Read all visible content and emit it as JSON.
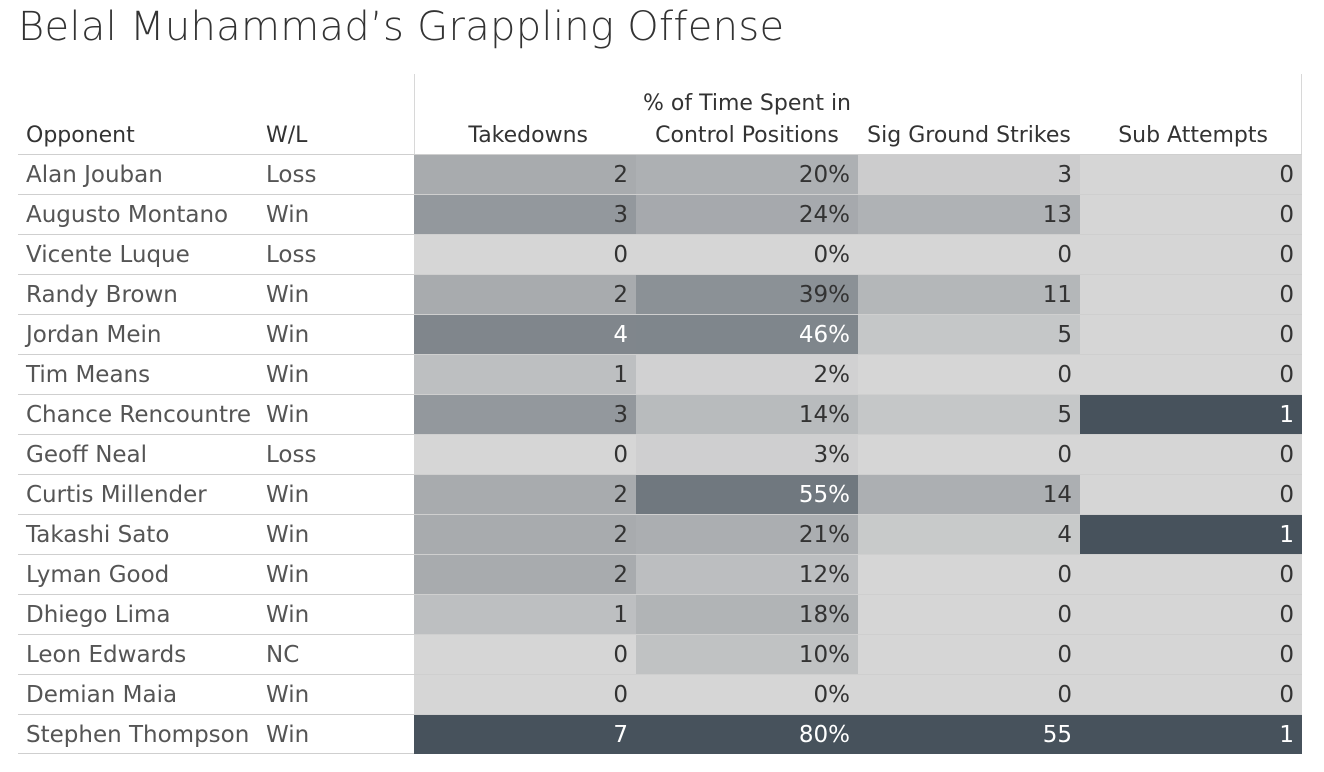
{
  "title": "Belal Muhammad’s Grappling Offense",
  "columns": {
    "opponent": "Opponent",
    "wl": "W/L",
    "takedowns": "Takedowns",
    "control_line1": "% of Time Spent in",
    "control_line2": "Control Positions",
    "ground_strikes": "Sig Ground Strikes",
    "sub_attempts": "Sub Attempts"
  },
  "colors": {
    "scale_low": "#d6d6d6",
    "scale_high": "#47525c",
    "text_dark": "#333333",
    "text_light": "#ffffff"
  },
  "chart_data": {
    "type": "table",
    "title": "Belal Muhammad’s Grappling Offense",
    "headers": [
      "Opponent",
      "W/L",
      "Takedowns",
      "% of Time Spent in Control Positions",
      "Sig Ground Strikes",
      "Sub Attempts"
    ],
    "rows": [
      {
        "opponent": "Alan Jouban",
        "wl": "Loss",
        "takedowns": 2,
        "control_pct": 20,
        "ground_strikes": 3,
        "sub_attempts": 0
      },
      {
        "opponent": "Augusto Montano",
        "wl": "Win",
        "takedowns": 3,
        "control_pct": 24,
        "ground_strikes": 13,
        "sub_attempts": 0
      },
      {
        "opponent": "Vicente Luque",
        "wl": "Loss",
        "takedowns": 0,
        "control_pct": 0,
        "ground_strikes": 0,
        "sub_attempts": 0
      },
      {
        "opponent": "Randy Brown",
        "wl": "Win",
        "takedowns": 2,
        "control_pct": 39,
        "ground_strikes": 11,
        "sub_attempts": 0
      },
      {
        "opponent": "Jordan Mein",
        "wl": "Win",
        "takedowns": 4,
        "control_pct": 46,
        "ground_strikes": 5,
        "sub_attempts": 0
      },
      {
        "opponent": "Tim Means",
        "wl": "Win",
        "takedowns": 1,
        "control_pct": 2,
        "ground_strikes": 0,
        "sub_attempts": 0
      },
      {
        "opponent": "Chance Rencountre",
        "wl": "Win",
        "takedowns": 3,
        "control_pct": 14,
        "ground_strikes": 5,
        "sub_attempts": 1
      },
      {
        "opponent": "Geoff Neal",
        "wl": "Loss",
        "takedowns": 0,
        "control_pct": 3,
        "ground_strikes": 0,
        "sub_attempts": 0
      },
      {
        "opponent": "Curtis Millender",
        "wl": "Win",
        "takedowns": 2,
        "control_pct": 55,
        "ground_strikes": 14,
        "sub_attempts": 0
      },
      {
        "opponent": "Takashi Sato",
        "wl": "Win",
        "takedowns": 2,
        "control_pct": 21,
        "ground_strikes": 4,
        "sub_attempts": 1
      },
      {
        "opponent": "Lyman Good",
        "wl": "Win",
        "takedowns": 2,
        "control_pct": 12,
        "ground_strikes": 0,
        "sub_attempts": 0
      },
      {
        "opponent": "Dhiego Lima",
        "wl": "Win",
        "takedowns": 1,
        "control_pct": 18,
        "ground_strikes": 0,
        "sub_attempts": 0
      },
      {
        "opponent": "Leon Edwards",
        "wl": "NC",
        "takedowns": 0,
        "control_pct": 10,
        "ground_strikes": 0,
        "sub_attempts": 0
      },
      {
        "opponent": "Demian Maia",
        "wl": "Win",
        "takedowns": 0,
        "control_pct": 0,
        "ground_strikes": 0,
        "sub_attempts": 0
      },
      {
        "opponent": "Stephen Thompson",
        "wl": "Win",
        "takedowns": 7,
        "control_pct": 80,
        "ground_strikes": 55,
        "sub_attempts": 1
      }
    ]
  }
}
